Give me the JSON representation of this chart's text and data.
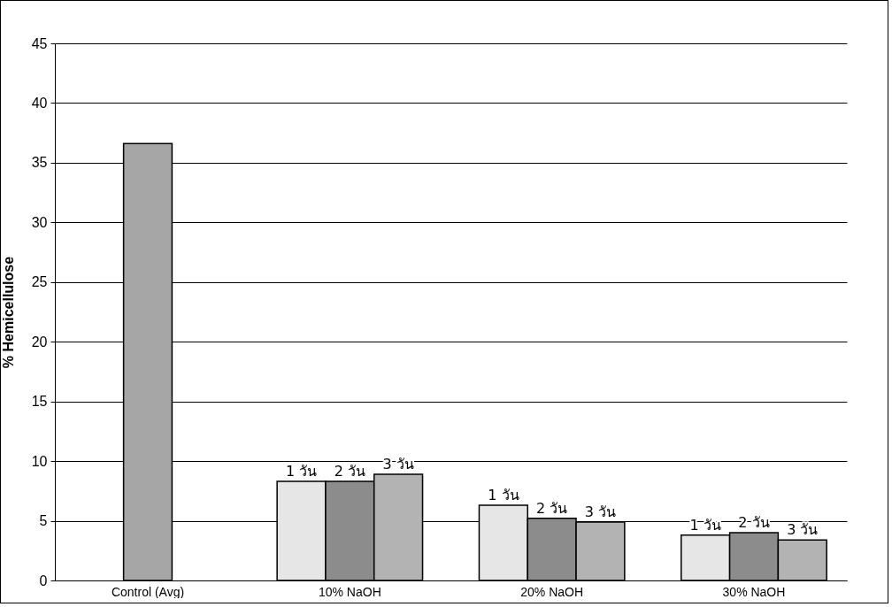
{
  "chart_data": {
    "type": "bar",
    "ylabel": "% Hemicellulose",
    "categories": [
      "Control (Avg)",
      "10% NaOH",
      "20% NaOH",
      "30% NaOH"
    ],
    "series": [
      {
        "color": "#a6a6a6",
        "values": [
          36.6,
          null,
          null,
          null
        ]
      },
      {
        "name": "1 วัน",
        "color": "#e6e6e6",
        "values": [
          null,
          8.3,
          6.3,
          3.8
        ]
      },
      {
        "name": "2 วัน",
        "color": "#8c8c8c",
        "values": [
          null,
          8.3,
          5.2,
          4.0
        ]
      },
      {
        "name": "3 วัน",
        "color": "#b3b3b3",
        "values": [
          null,
          8.9,
          4.9,
          3.4
        ]
      }
    ],
    "ylim": [
      0,
      45
    ],
    "yticks": [
      0,
      5,
      10,
      15,
      20,
      25,
      30,
      35,
      40,
      45
    ],
    "grid": "y",
    "legend": false
  }
}
